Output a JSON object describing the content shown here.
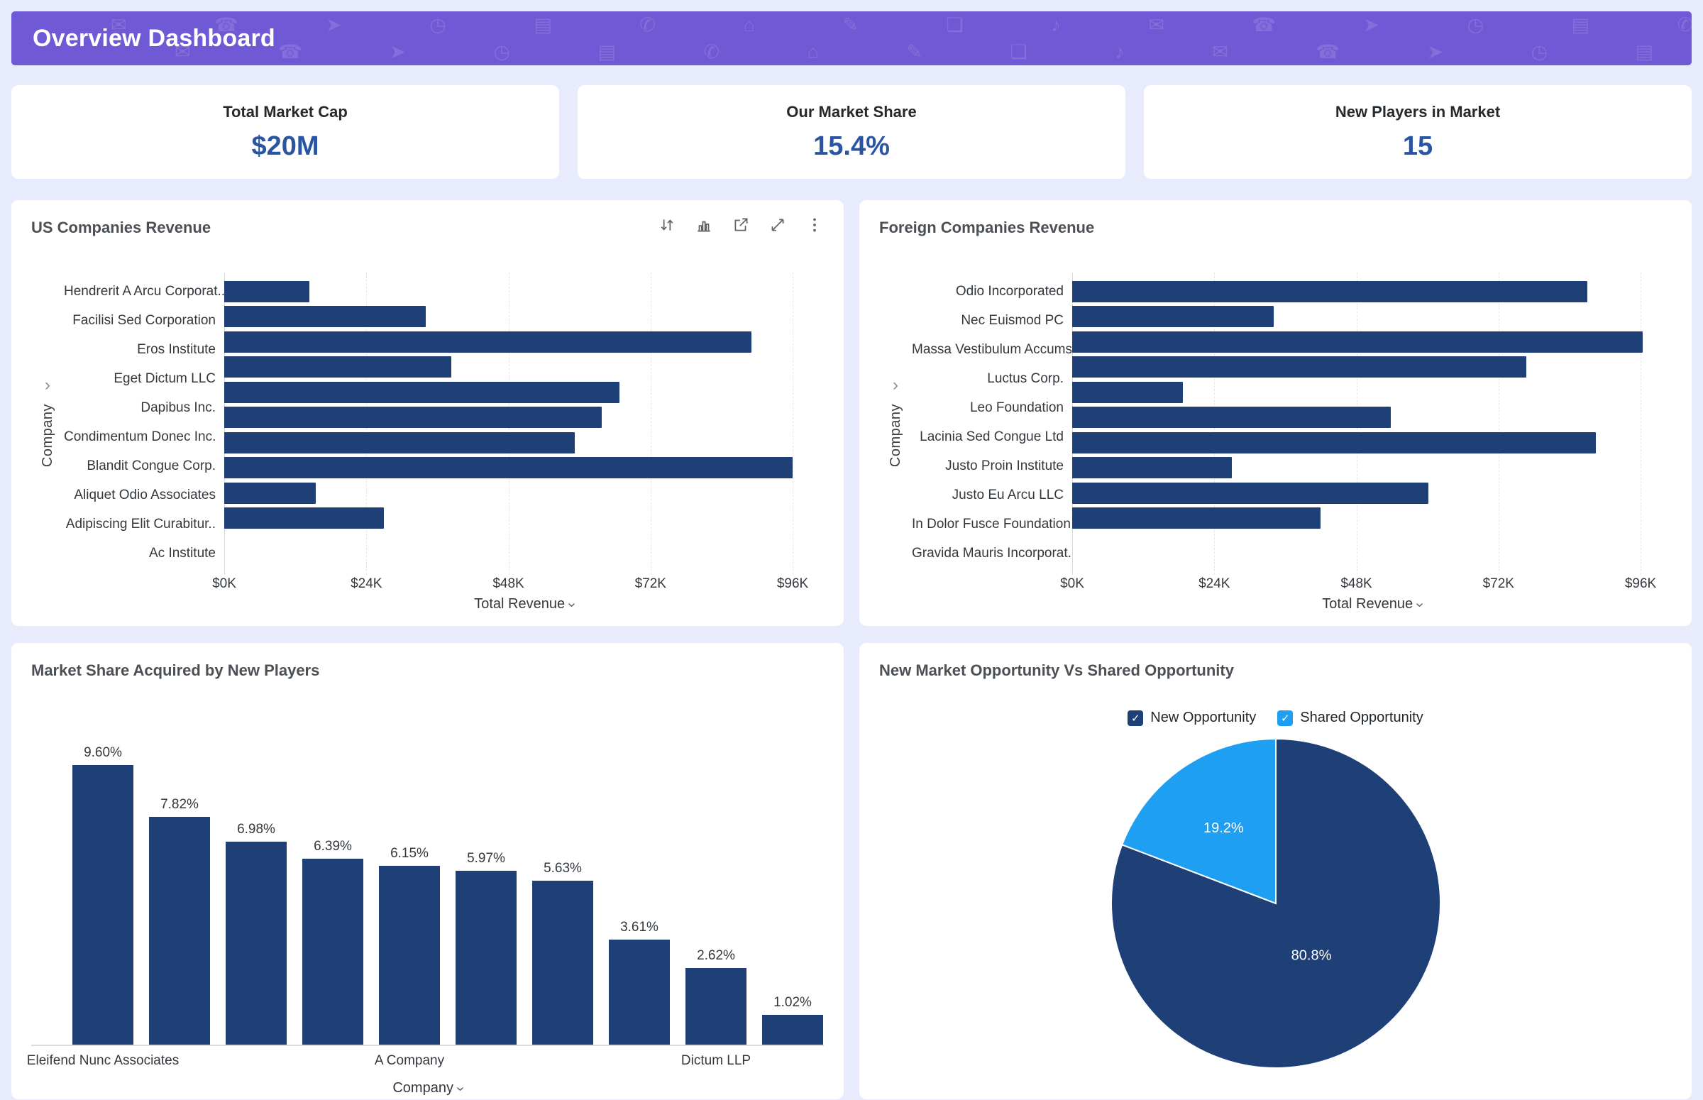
{
  "header": {
    "title": "Overview Dashboard"
  },
  "decor_icons": "✉ ☎ ➤ ◷ ▤ ✆ ⌂ ✎ ❏ ♪ ✉ ☎ ➤ ◷ ▤ ✆ ⌂ ✎ ❏ ♪",
  "icons": {
    "check": "✓",
    "chevron": "›"
  },
  "kpis": [
    {
      "label": "Total Market Cap",
      "value": "$20M"
    },
    {
      "label": "Our Market Share",
      "value": "15.4%"
    },
    {
      "label": "New Players in Market",
      "value": "15"
    }
  ],
  "toolbar": [
    "sort",
    "chart-type",
    "open-in-new",
    "expand",
    "more"
  ],
  "colors": {
    "header_purple": "#7059D4",
    "bar_navy": "#1E4077",
    "light_blue": "#1E9FF2",
    "kpi_value_blue": "#2A55A2",
    "page_bg": "#E7EBFC"
  },
  "chart_data": [
    {
      "type": "bar",
      "orientation": "horizontal",
      "title": "US Companies Revenue",
      "xlabel": "Total Revenue",
      "ylabel": "Company",
      "xlim": [
        0,
        96000
      ],
      "xticks": [
        "$0K",
        "$24K",
        "$48K",
        "$72K",
        "$96K"
      ],
      "grid": true,
      "categories": [
        "Hendrerit A Arcu Corporat..",
        "Facilisi Sed Corporation",
        "Eros Institute",
        "Eget Dictum LLC",
        "Dapibus Inc.",
        "Condimentum Donec Inc.",
        "Blandit Congue Corp.",
        "Aliquet Odio Associates",
        "Adipiscing Elit Curabitur..",
        "Ac Institute"
      ],
      "values": [
        14400,
        34000,
        89000,
        38400,
        66800,
        63800,
        59200,
        96000,
        15500,
        27000
      ]
    },
    {
      "type": "bar",
      "orientation": "horizontal",
      "title": "Foreign Companies Revenue",
      "xlabel": "Total Revenue",
      "ylabel": "Company",
      "xlim": [
        0,
        96000
      ],
      "xticks": [
        "$0K",
        "$24K",
        "$48K",
        "$72K",
        "$96K"
      ],
      "grid": true,
      "categories": [
        "Odio Incorporated",
        "Nec Euismod PC",
        "Massa Vestibulum Accums..",
        "Luctus Corp.",
        "Leo Foundation",
        "Lacinia Sed Congue Ltd",
        "Justo Proin Institute",
        "Justo Eu Arcu LLC",
        "In Dolor Fusce Foundation",
        "Gravida Mauris Incorporat.."
      ],
      "values": [
        87000,
        34000,
        96400,
        76700,
        18700,
        53800,
        88400,
        27000,
        60200,
        42000
      ]
    },
    {
      "type": "bar",
      "orientation": "vertical",
      "title": "Market Share Acquired by New Players",
      "xlabel": "Company",
      "ylim": [
        0,
        9.6
      ],
      "values": [
        9.6,
        7.82,
        6.98,
        6.39,
        6.15,
        5.97,
        5.63,
        3.61,
        2.62,
        1.02
      ],
      "value_labels": [
        "9.60%",
        "7.82%",
        "6.98%",
        "6.39%",
        "6.15%",
        "5.97%",
        "5.63%",
        "3.61%",
        "2.62%",
        "1.02%"
      ],
      "axis_labels": [
        {
          "index": 0,
          "label": "Eleifend Nunc Associates"
        },
        {
          "index": 4,
          "label": "A Company"
        },
        {
          "index": 8,
          "label": "Dictum LLP"
        }
      ]
    },
    {
      "type": "pie",
      "title": "New Market Opportunity Vs Shared Opportunity",
      "legend_position": "top",
      "slices": [
        {
          "label": "New Opportunity",
          "value": 80.8,
          "display": "80.8%",
          "color": "#1E4077",
          "checked": true
        },
        {
          "label": "Shared Opportunity",
          "value": 19.2,
          "display": "19.2%",
          "color": "#1E9FF2",
          "checked": true
        }
      ]
    }
  ]
}
